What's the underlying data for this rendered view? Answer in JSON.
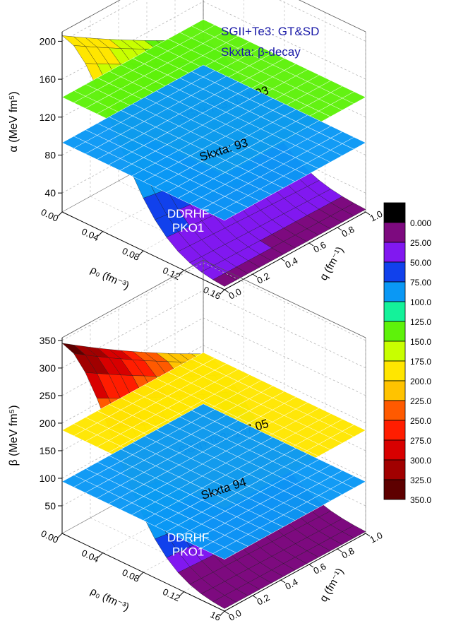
{
  "chart_data": [
    {
      "type": "surface3d",
      "panel": "alpha",
      "annotations": [
        "SGII+Te3: GT&SD",
        "Skxta: β-decay"
      ],
      "zlabel": "α (MeV fm⁵)",
      "xlabel": "ρ₀ (fm⁻³)",
      "ylabel": "q (fm⁻¹)",
      "zlim": [
        20,
        210
      ],
      "zticks": [
        "40",
        "80",
        "120",
        "160",
        "200"
      ],
      "xticks": [
        "0.00",
        "0.04",
        "0.08",
        "0.12",
        "0.16"
      ],
      "yticks": [
        "0.0",
        "0.2",
        "0.4",
        "0.6",
        "0.8",
        "1.0"
      ],
      "planes": [
        {
          "label": "SGII+Te3: 141.03",
          "value": 141.03
        },
        {
          "label": "Skxta: 93",
          "value": 93
        }
      ],
      "surface_label": [
        "DDRHF",
        "PKO1"
      ],
      "surface_peak": 206
    },
    {
      "type": "surface3d",
      "panel": "beta",
      "annotations": [],
      "zlabel": "β (MeV fm⁵)",
      "xlabel": "ρ₀ (fm⁻³)",
      "ylabel": "q (fm⁻¹)",
      "zlim": [
        0,
        355
      ],
      "zticks": [
        "50",
        "100",
        "150",
        "200",
        "250",
        "300",
        "350"
      ],
      "xticks": [
        "0.00",
        "0.04",
        "0.08",
        "0.12",
        "16"
      ],
      "yticks": [
        "0.0",
        "0.2",
        "0.4",
        "0.6",
        "0.8",
        "1.0"
      ],
      "planes": [
        {
          "label": "SGII+Te3: 187.05",
          "value": 187.05
        },
        {
          "label": "Skxta 94",
          "value": 94
        }
      ],
      "surface_label": [
        "DDRHF",
        "PKO1"
      ],
      "surface_peak": 345
    }
  ],
  "colorbar": {
    "labels": [
      "0.000",
      "25.00",
      "50.00",
      "75.00",
      "100.0",
      "125.0",
      "150.0",
      "175.0",
      "200.0",
      "225.0",
      "250.0",
      "275.0",
      "300.0",
      "325.0",
      "350.0"
    ],
    "colors": [
      "#000000",
      "#7d0a7f",
      "#8118f0",
      "#1141ec",
      "#0a98f5",
      "#14f29a",
      "#5ef20a",
      "#c8ff00",
      "#ffe600",
      "#ffc300",
      "#ff5a00",
      "#ff1d00",
      "#d80000",
      "#a10000",
      "#5e0000"
    ]
  }
}
